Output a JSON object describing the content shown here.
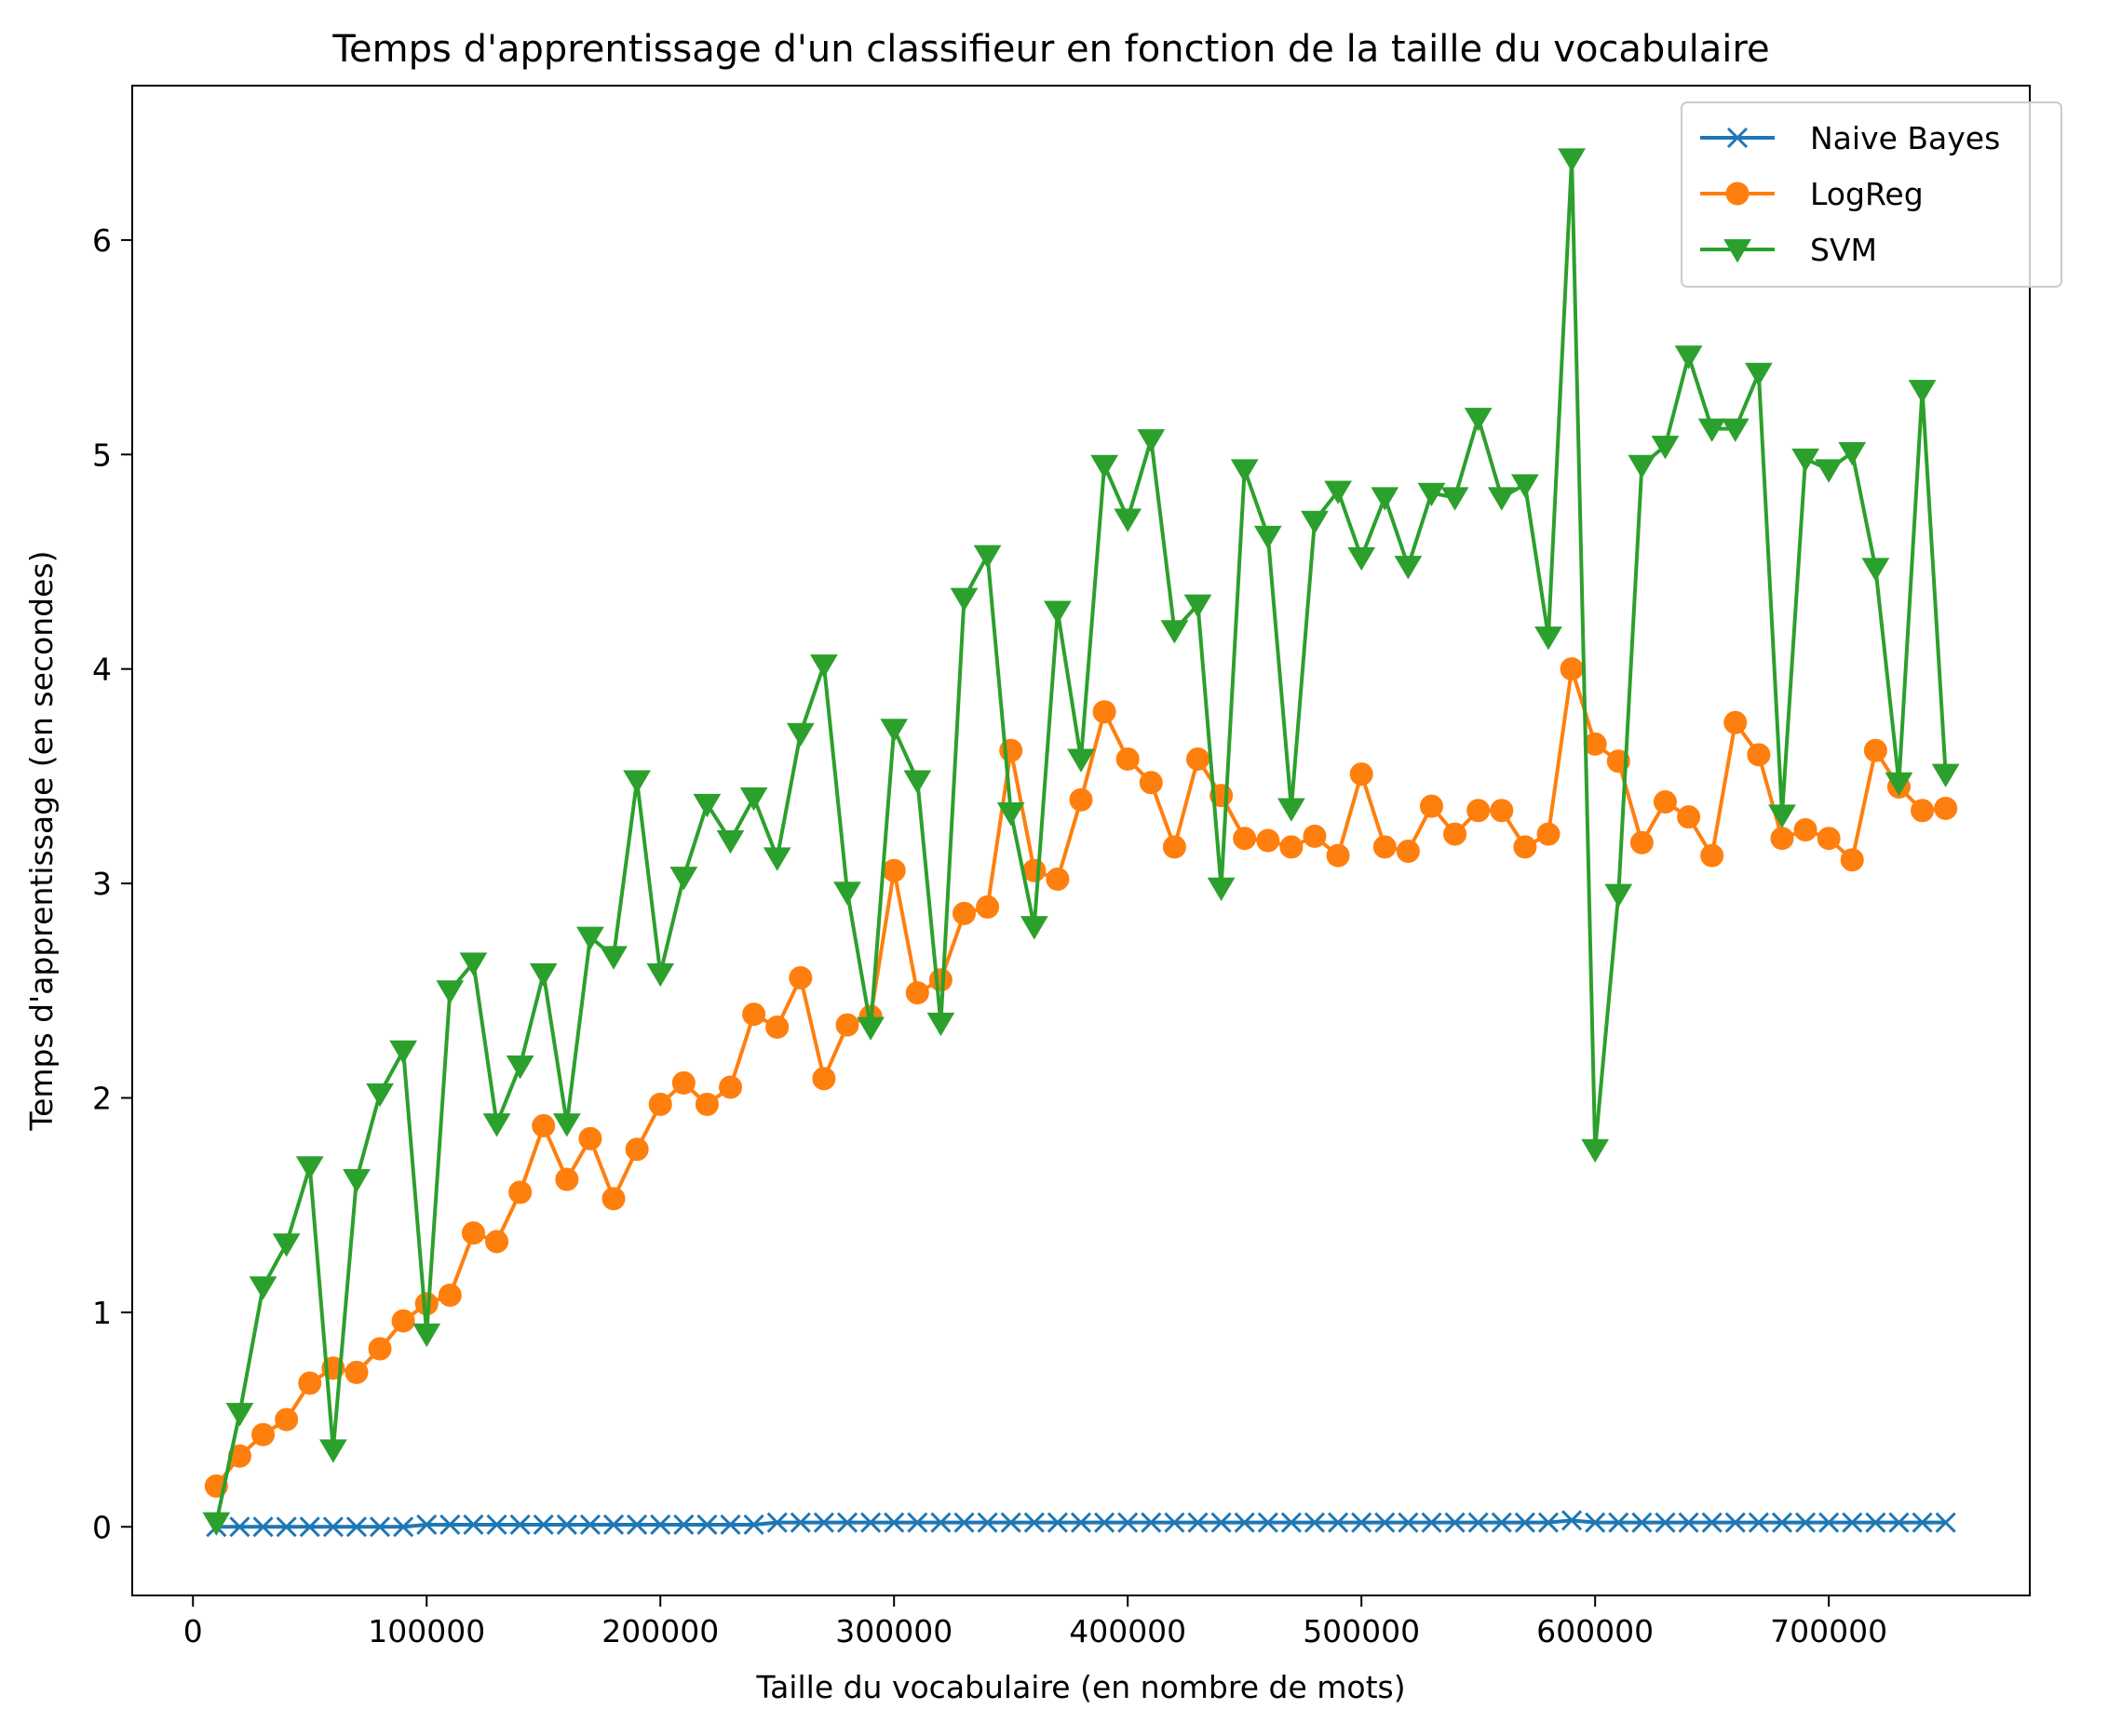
{
  "chart_data": {
    "type": "line",
    "title": "Temps d'apprentissage d'un classifieur en fonction de la taille du vocabulaire",
    "xlabel": "Taille du vocabulaire (en nombre de mots)",
    "ylabel": "Temps d'apprentissage (en secondes)",
    "xlim": [
      -26000,
      786000
    ],
    "ylim": [
      -0.32,
      6.72
    ],
    "xticks": [
      0,
      100000,
      200000,
      300000,
      400000,
      500000,
      600000,
      700000
    ],
    "xtick_labels": [
      "0",
      "100000",
      "200000",
      "300000",
      "400000",
      "500000",
      "600000",
      "700000"
    ],
    "yticks": [
      0,
      1,
      2,
      3,
      4,
      5,
      6
    ],
    "ytick_labels": [
      "0",
      "1",
      "2",
      "3",
      "4",
      "5",
      "6"
    ],
    "grid": false,
    "legend_position": "top-right",
    "x": [
      10000,
      20000,
      30000,
      40000,
      50000,
      60000,
      70000,
      80000,
      90000,
      100000,
      110000,
      120000,
      130000,
      140000,
      150000,
      160000,
      170000,
      180000,
      190000,
      200000,
      210000,
      220000,
      230000,
      240000,
      250000,
      260000,
      270000,
      280000,
      290000,
      300000,
      310000,
      320000,
      330000,
      340000,
      350000,
      360000,
      370000,
      380000,
      390000,
      400000,
      410000,
      420000,
      430000,
      440000,
      450000,
      460000,
      470000,
      480000,
      490000,
      500000,
      510000,
      520000,
      530000,
      540000,
      550000,
      560000,
      570000,
      580000,
      590000,
      600000,
      610000,
      620000,
      630000,
      640000,
      650000,
      660000,
      670000,
      680000,
      690000,
      700000,
      710000,
      720000,
      730000,
      740000,
      750000
    ],
    "series": [
      {
        "name": "Naive Bayes",
        "color": "#1f77b4",
        "marker": "x",
        "values": [
          0.0,
          0.0,
          0.0,
          0.0,
          0.0,
          0.0,
          0.0,
          0.0,
          0.0,
          0.01,
          0.01,
          0.01,
          0.01,
          0.01,
          0.01,
          0.01,
          0.01,
          0.01,
          0.01,
          0.01,
          0.01,
          0.01,
          0.01,
          0.01,
          0.02,
          0.02,
          0.02,
          0.02,
          0.02,
          0.02,
          0.02,
          0.02,
          0.02,
          0.02,
          0.02,
          0.02,
          0.02,
          0.02,
          0.02,
          0.02,
          0.02,
          0.02,
          0.02,
          0.02,
          0.02,
          0.02,
          0.02,
          0.02,
          0.02,
          0.02,
          0.02,
          0.02,
          0.02,
          0.02,
          0.02,
          0.02,
          0.02,
          0.02,
          0.03,
          0.02,
          0.02,
          0.02,
          0.02,
          0.02,
          0.02,
          0.02,
          0.02,
          0.02,
          0.02,
          0.02,
          0.02,
          0.02,
          0.02,
          0.02,
          0.02
        ]
      },
      {
        "name": "LogReg",
        "color": "#ff7f0e",
        "marker": "o",
        "values": [
          0.19,
          0.33,
          0.43,
          0.5,
          0.67,
          0.74,
          0.72,
          0.83,
          0.96,
          1.04,
          1.08,
          1.37,
          1.33,
          1.56,
          1.87,
          1.62,
          1.81,
          1.53,
          1.76,
          1.97,
          2.07,
          1.97,
          2.05,
          2.39,
          2.33,
          2.56,
          2.09,
          2.34,
          2.38,
          3.06,
          2.49,
          2.55,
          2.86,
          2.89,
          3.62,
          3.06,
          3.02,
          3.39,
          3.8,
          3.58,
          3.47,
          3.17,
          3.58,
          3.41,
          3.21,
          3.2,
          3.17,
          3.22,
          3.13,
          3.51,
          3.17,
          3.15,
          3.36,
          3.23,
          3.34,
          3.34,
          3.17,
          3.23,
          4.0,
          3.65,
          3.57,
          3.19,
          3.38,
          3.31,
          3.13,
          3.75,
          3.6,
          3.21,
          3.25,
          3.21,
          3.11,
          3.62,
          3.45,
          3.34,
          3.35
        ]
      },
      {
        "name": "SVM",
        "color": "#2ca02c",
        "marker": "v",
        "values": [
          0.02,
          0.53,
          1.12,
          1.32,
          1.68,
          0.36,
          1.62,
          2.02,
          2.22,
          0.9,
          2.5,
          2.63,
          1.88,
          2.15,
          2.58,
          1.88,
          2.75,
          2.66,
          3.48,
          2.58,
          3.03,
          3.37,
          3.2,
          3.4,
          3.12,
          3.7,
          4.02,
          2.96,
          2.33,
          3.72,
          3.48,
          2.35,
          4.33,
          4.53,
          3.33,
          2.8,
          4.27,
          3.58,
          4.95,
          4.7,
          5.07,
          4.18,
          4.3,
          2.98,
          4.93,
          4.62,
          3.35,
          4.69,
          4.83,
          4.52,
          4.8,
          4.48,
          4.82,
          4.8,
          5.17,
          4.8,
          4.86,
          4.15,
          6.38,
          1.76,
          2.95,
          4.95,
          5.04,
          5.46,
          5.12,
          5.12,
          5.38,
          3.32,
          4.98,
          4.93,
          5.01,
          4.47,
          3.47,
          5.3,
          3.51
        ]
      }
    ]
  }
}
